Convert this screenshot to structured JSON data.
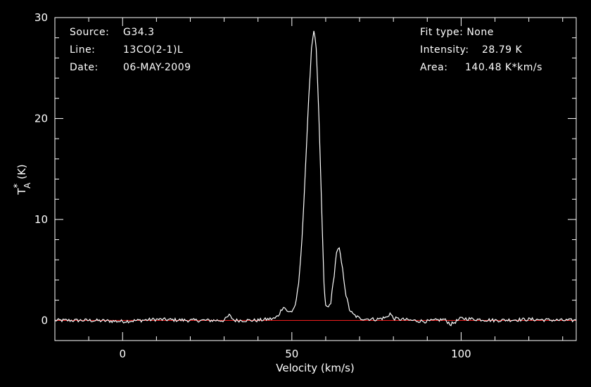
{
  "header_left": {
    "source_label": "Source:",
    "source_value": "G34.3",
    "line_label": "Line:",
    "line_value": "13CO(2-1)L",
    "date_label": "Date:",
    "date_value": "06-MAY-2009"
  },
  "header_right": {
    "fit_label": "Fit type:",
    "fit_value": "None",
    "intensity_label": "Intensity:",
    "intensity_value": "28.79 K",
    "area_label": "Area:",
    "area_value": "140.48 K*km/s"
  },
  "chart_data": {
    "type": "line",
    "xlabel": "Velocity (km/s)",
    "ylabel_main": "T",
    "ylabel_sub": "A",
    "ylabel_sup": "*",
    "ylabel_unit": " (K)",
    "xlim": [
      -20,
      134
    ],
    "ylim": [
      -2,
      30
    ],
    "xticks": [
      0,
      50,
      100
    ],
    "xtick_labels": [
      "0",
      "50",
      "100"
    ],
    "yticks": [
      0,
      10,
      20,
      30
    ],
    "ytick_labels": [
      "0",
      "10",
      "20",
      "30"
    ],
    "baseline": 0,
    "colors": {
      "background": "#000000",
      "trace": "#ffffff",
      "baseline": "#ff2020",
      "axes": "#ffffff"
    },
    "series": [
      {
        "x": [
          -20,
          -10,
          0,
          10,
          20,
          30,
          31.5,
          33,
          40,
          45,
          46,
          47.5,
          49,
          50,
          51,
          52,
          53,
          54,
          55,
          55.8,
          56.5,
          57.2,
          58,
          59,
          59.5,
          60,
          60.8,
          61.5,
          62.5,
          63.2,
          64,
          65,
          66,
          67,
          68,
          70,
          75,
          78,
          79,
          80,
          85,
          90,
          95,
          97,
          100,
          110,
          120,
          130,
          134
        ],
        "values": [
          0,
          0,
          -0.1,
          0.1,
          0,
          0,
          0.5,
          0,
          0,
          0.2,
          0.5,
          1.4,
          0.8,
          0.9,
          1.5,
          3.5,
          8,
          15,
          22,
          27,
          28.79,
          27,
          20,
          9,
          3.5,
          1.4,
          1.3,
          1.8,
          4.5,
          6.8,
          7.1,
          5,
          2.5,
          1.1,
          0.6,
          0.2,
          0.1,
          0.3,
          0.7,
          0.2,
          0,
          -0.1,
          0.1,
          -0.4,
          0.2,
          0,
          0.1,
          0,
          0
        ]
      }
    ]
  }
}
